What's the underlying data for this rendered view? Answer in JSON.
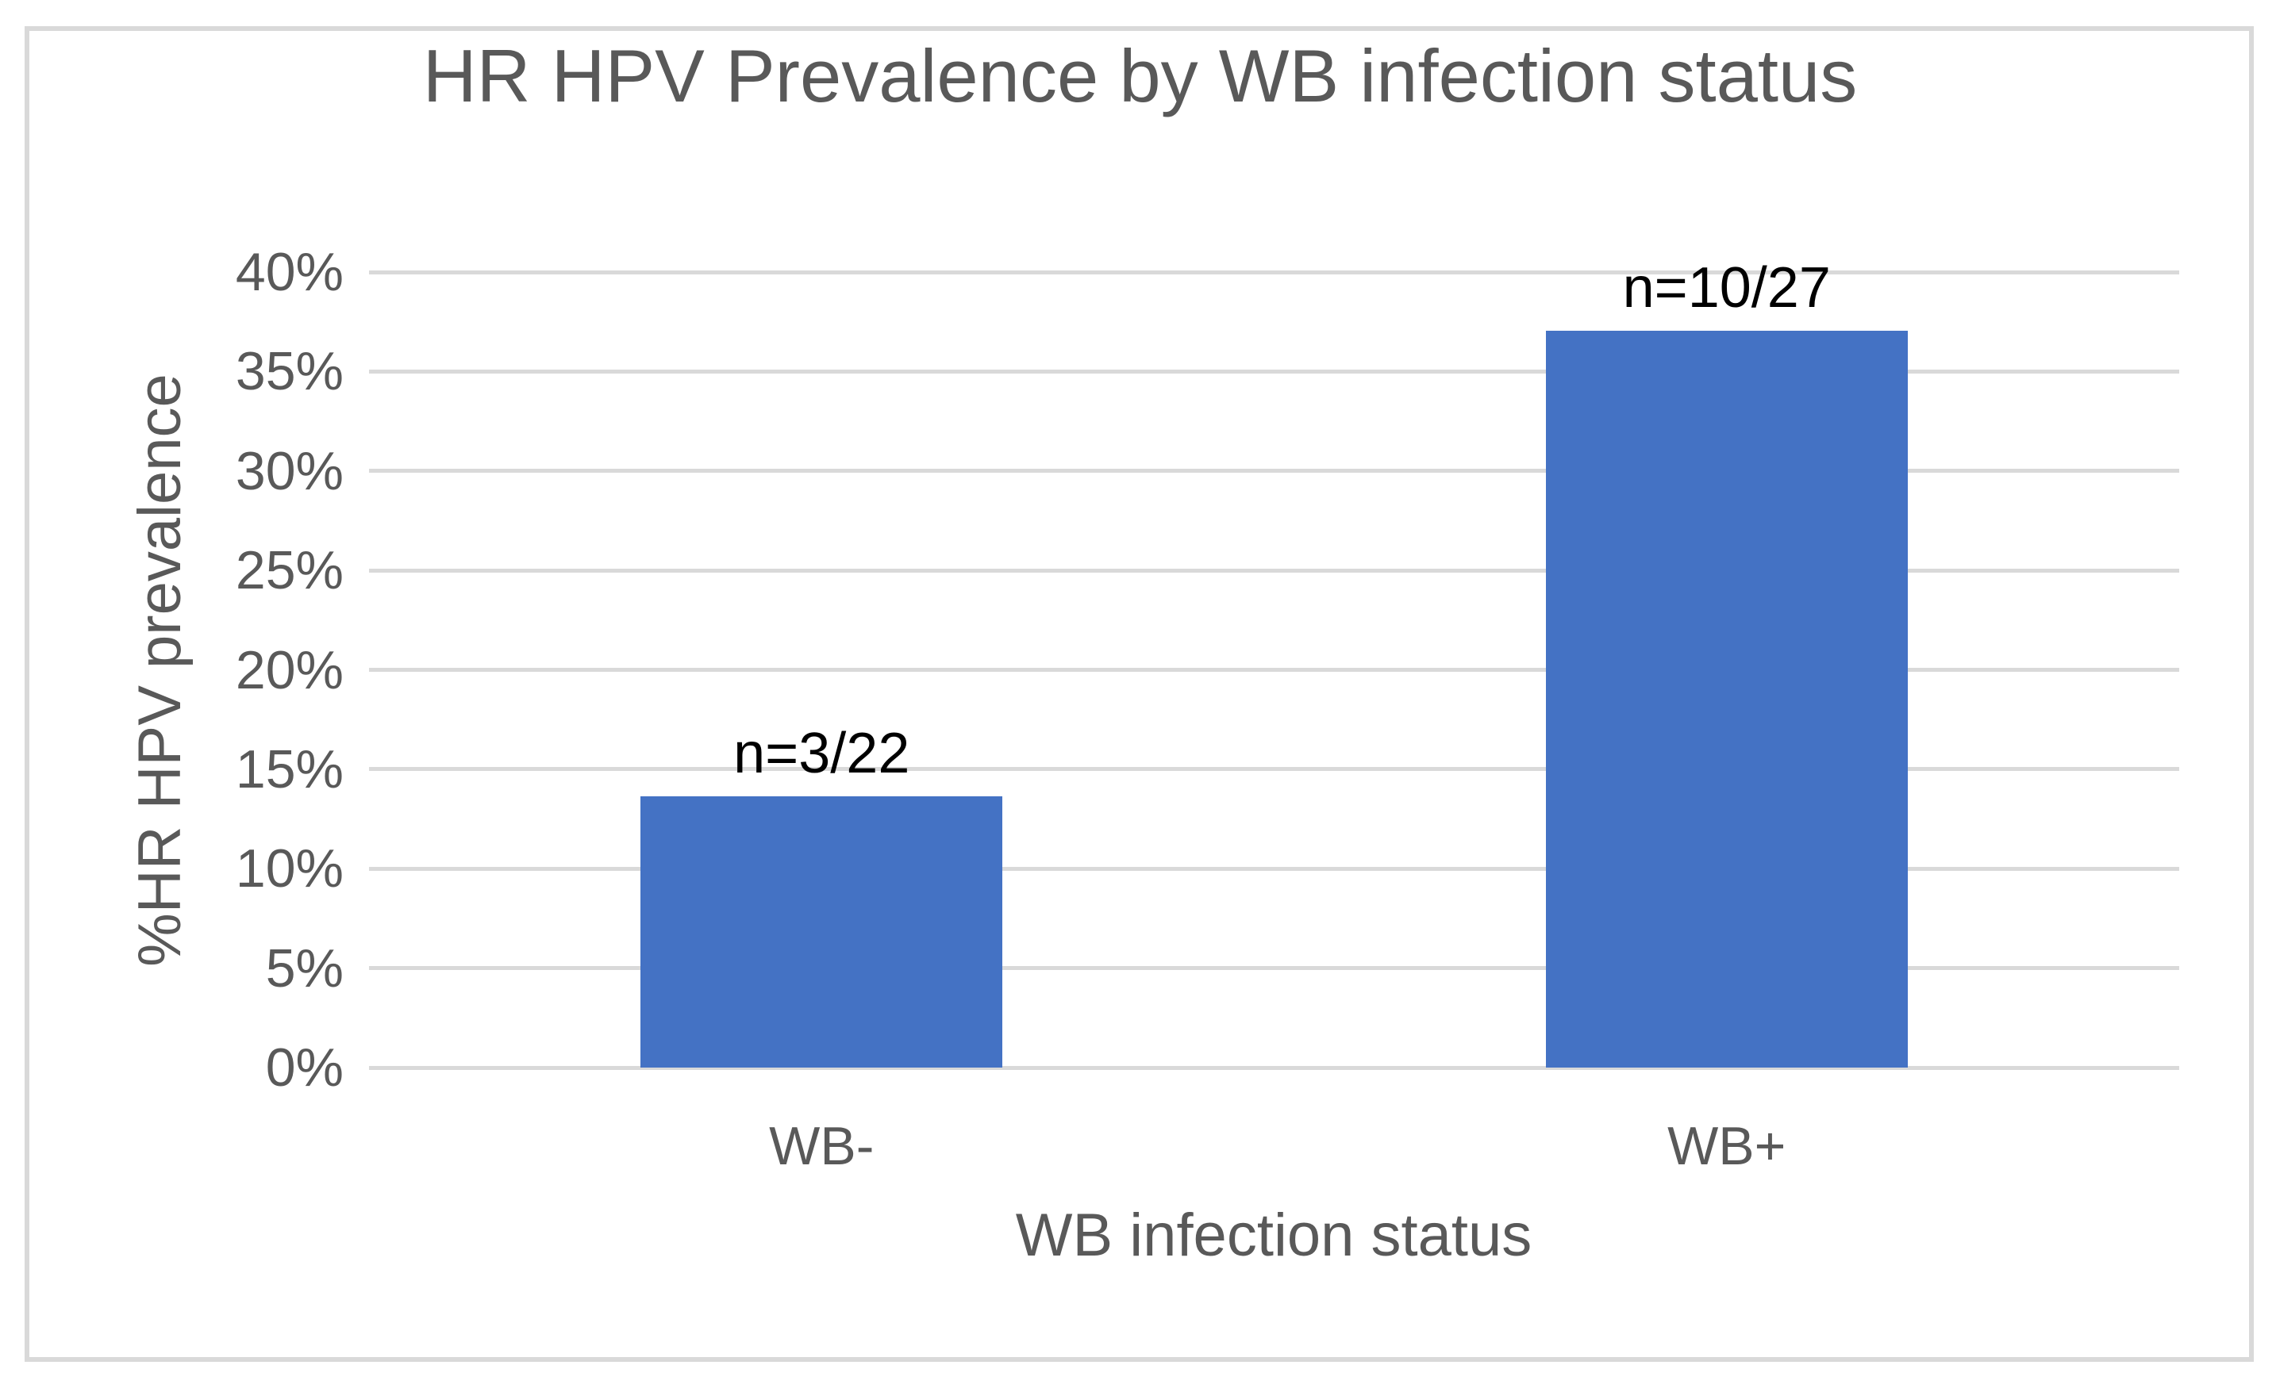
{
  "chart_data": {
    "type": "bar",
    "title": "HR HPV Prevalence by WB infection status",
    "xlabel": "WB infection status",
    "ylabel": "%HR HPV prevalence",
    "categories": [
      "WB-",
      "WB+"
    ],
    "values": [
      13.64,
      37.04
    ],
    "bar_labels": [
      "n=3/22",
      "n=10/27"
    ],
    "ylim": [
      0,
      40
    ],
    "ytick_labels": [
      "0%",
      "5%",
      "10%",
      "15%",
      "20%",
      "25%",
      "30%",
      "35%",
      "40%"
    ],
    "grid": true,
    "legend": "none",
    "colors": {
      "bar": "#4472C4",
      "axis_text": "#595959",
      "data_label": "#000000",
      "gridline": "#D9D9D9",
      "chart_border": "#D9D9D9",
      "background": "#FFFFFF"
    }
  }
}
